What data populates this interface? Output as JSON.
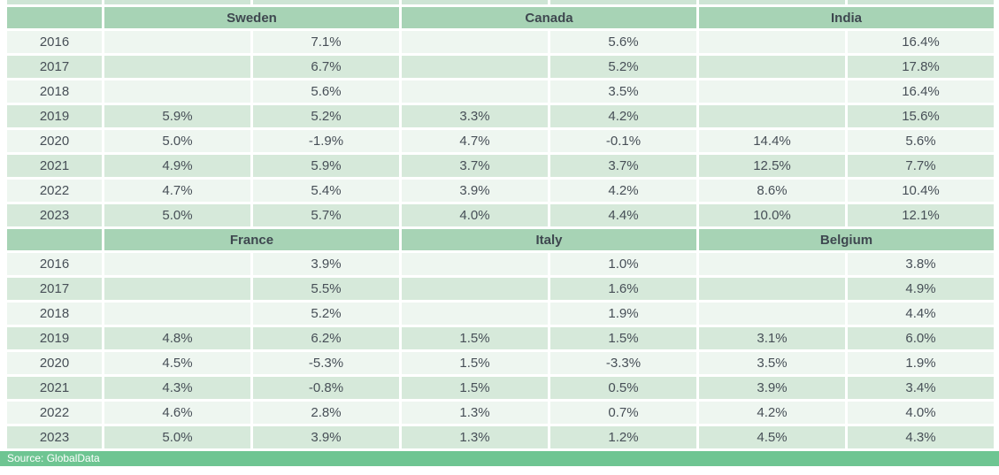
{
  "source_label": "Source: GlobalData",
  "colors": {
    "header_green": "#a7d3b5",
    "row_light": "#eef6f0",
    "row_green": "#d6e9da",
    "source_bar_green": "#6ec592",
    "text": "#474f57",
    "source_text": "#ffffff"
  },
  "chart_data": {
    "type": "table",
    "years": [
      "2016",
      "2017",
      "2018",
      "2019",
      "2020",
      "2021",
      "2022",
      "2023"
    ],
    "sections": [
      {
        "countries": [
          {
            "name": "Sweden",
            "col1": [
              "",
              "",
              "",
              "5.9%",
              "5.0%",
              "4.9%",
              "4.7%",
              "5.0%"
            ],
            "col2": [
              "7.1%",
              "6.7%",
              "5.6%",
              "5.2%",
              "-1.9%",
              "5.9%",
              "5.4%",
              "5.7%"
            ]
          },
          {
            "name": "Canada",
            "col1": [
              "",
              "",
              "",
              "3.3%",
              "4.7%",
              "3.7%",
              "3.9%",
              "4.0%"
            ],
            "col2": [
              "5.6%",
              "5.2%",
              "3.5%",
              "4.2%",
              "-0.1%",
              "3.7%",
              "4.2%",
              "4.4%"
            ]
          },
          {
            "name": "India",
            "col1": [
              "",
              "",
              "",
              "",
              "14.4%",
              "12.5%",
              "8.6%",
              "10.0%"
            ],
            "col2": [
              "16.4%",
              "17.8%",
              "16.4%",
              "15.6%",
              "5.6%",
              "7.7%",
              "10.4%",
              "12.1%"
            ]
          }
        ]
      },
      {
        "countries": [
          {
            "name": "France",
            "col1": [
              "",
              "",
              "",
              "4.8%",
              "4.5%",
              "4.3%",
              "4.6%",
              "5.0%"
            ],
            "col2": [
              "3.9%",
              "5.5%",
              "5.2%",
              "6.2%",
              "-5.3%",
              "-0.8%",
              "2.8%",
              "3.9%"
            ]
          },
          {
            "name": "Italy",
            "col1": [
              "",
              "",
              "",
              "1.5%",
              "1.5%",
              "1.5%",
              "1.3%",
              "1.3%"
            ],
            "col2": [
              "1.0%",
              "1.6%",
              "1.9%",
              "1.5%",
              "-3.3%",
              "0.5%",
              "0.7%",
              "1.2%"
            ]
          },
          {
            "name": "Belgium",
            "col1": [
              "",
              "",
              "",
              "3.1%",
              "3.5%",
              "3.9%",
              "4.2%",
              "4.5%"
            ],
            "col2": [
              "3.8%",
              "4.9%",
              "4.4%",
              "6.0%",
              "1.9%",
              "3.4%",
              "4.0%",
              "4.3%"
            ]
          }
        ]
      }
    ]
  }
}
